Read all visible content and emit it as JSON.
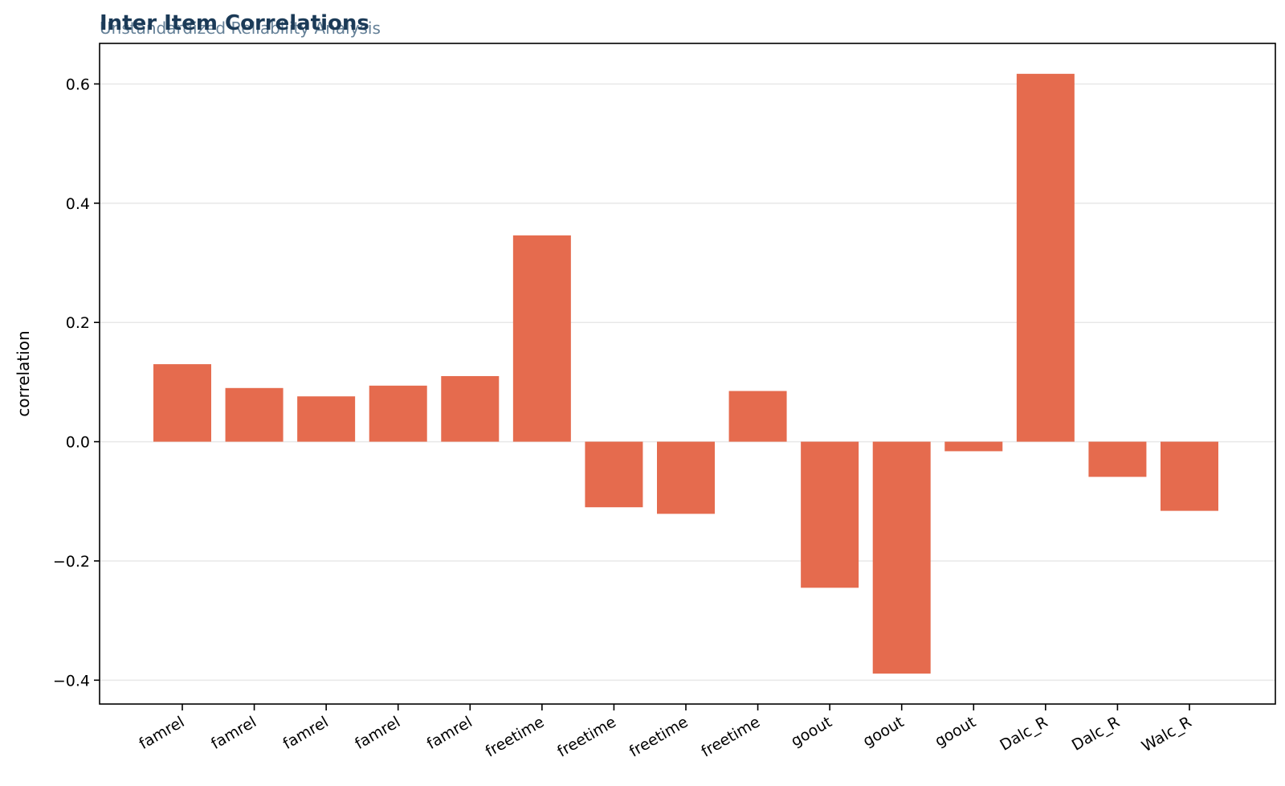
{
  "chart_data": {
    "type": "bar",
    "title": "Inter Item Correlations",
    "subtitle": "Unstandardized Reliability Analysis",
    "ylabel": "correlation",
    "xlabel": "",
    "categories": [
      "famrel",
      "famrel",
      "famrel",
      "famrel",
      "famrel",
      "freetime",
      "freetime",
      "freetime",
      "freetime",
      "goout",
      "goout",
      "goout",
      "Dalc_R",
      "Dalc_R",
      "Walc_R"
    ],
    "values": [
      0.13,
      0.09,
      0.076,
      0.094,
      0.11,
      0.346,
      -0.11,
      -0.121,
      0.085,
      -0.245,
      -0.389,
      -0.016,
      0.617,
      -0.059,
      -0.116
    ],
    "yticks": [
      -0.4,
      -0.2,
      0.0,
      0.2,
      0.4,
      0.6
    ],
    "ytick_labels": [
      "−0.4",
      "−0.2",
      "0.0",
      "0.2",
      "0.4",
      "0.6"
    ],
    "ylim": [
      -0.44,
      0.668
    ],
    "grid": "horizontal",
    "legend": "none",
    "colors": {
      "bar": "#e56b4e",
      "title": "#1b3a57"
    }
  }
}
